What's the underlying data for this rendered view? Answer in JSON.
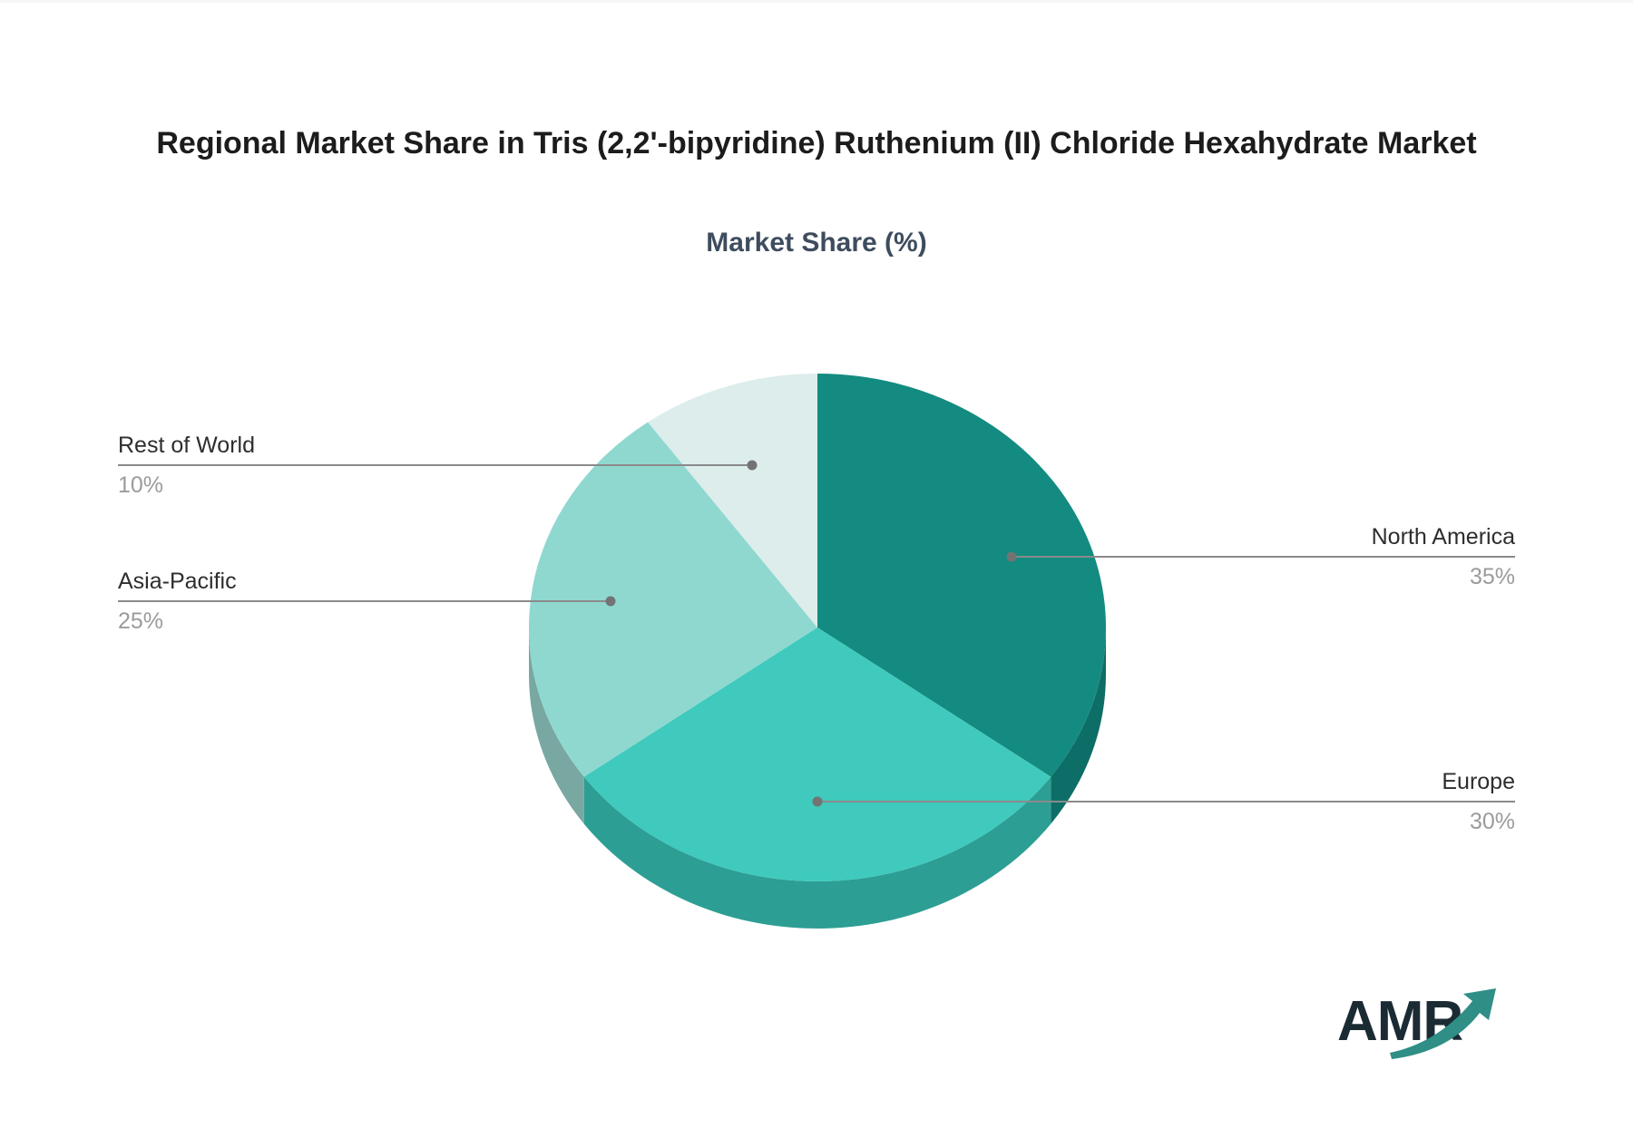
{
  "title": "Regional Market Share in Tris (2,2'-bipyridine) Ruthenium (II) Chloride Hexahydrate Market",
  "subtitle": "Market Share (%)",
  "logo_text": "AMR",
  "colors": {
    "background": "#ffffff",
    "title_text": "#1c1c1c",
    "subtitle_text": "#3e4c5e",
    "label_name_text": "#2e2e2e",
    "label_pct_text": "#9b9b9b",
    "leader_line": "#8a8a8a",
    "leader_dot": "#737373",
    "logo_text_color": "#1b2b33",
    "logo_swoosh": "#2f8e86"
  },
  "chart_data": {
    "type": "pie",
    "title": "Regional Market Share in Tris (2,2'-bipyridine) Ruthenium (II) Chloride Hexahydrate Market",
    "subtitle": "Market Share (%)",
    "unit": "%",
    "start_angle_deg": 0,
    "direction": "clockwise",
    "style": "3d-pie",
    "legend_position": "callout-labels",
    "slices": [
      {
        "label": "North America",
        "value": 35,
        "pct_label": "35%",
        "color": "#148b80",
        "side_color": "#0c6e66"
      },
      {
        "label": "Europe",
        "value": 30,
        "pct_label": "30%",
        "color": "#3fcabd",
        "side_color": "#2d9e93"
      },
      {
        "label": "Asia-Pacific",
        "value": 25,
        "pct_label": "25%",
        "color": "#8fd8d0",
        "side_color": "#79a8a3"
      },
      {
        "label": "Rest of World",
        "value": 10,
        "pct_label": "10%",
        "color": "#dcedeb",
        "side_color": "#b9cfcc"
      }
    ]
  }
}
